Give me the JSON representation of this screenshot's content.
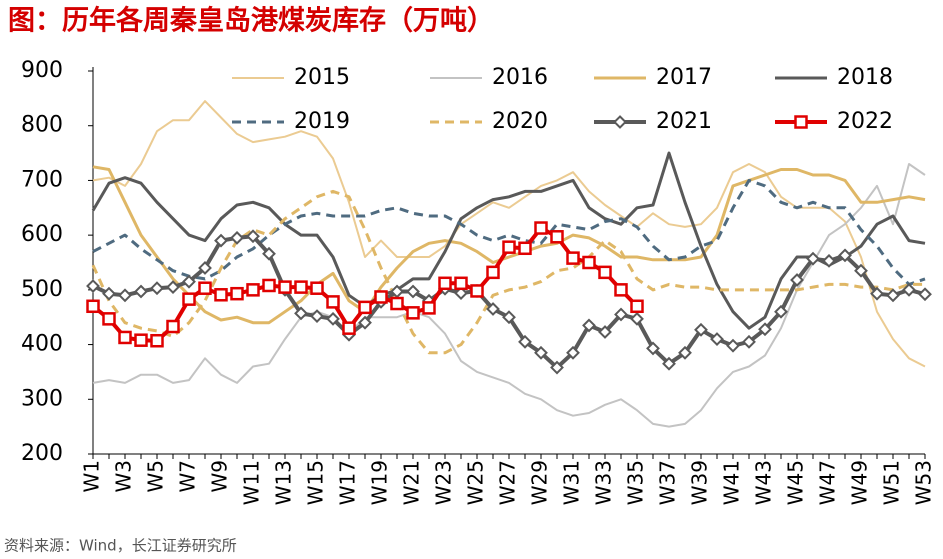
{
  "chart_data": {
    "type": "line",
    "title": "图：历年各周秦皇岛港煤炭库存（万吨）",
    "source": "资料来源：Wind，长江证券研究所",
    "categories": [
      "W1",
      null,
      "W3",
      null,
      "W5",
      null,
      "W7",
      null,
      "W9",
      null,
      "W11",
      null,
      "W13",
      null,
      "W15",
      null,
      "W17",
      null,
      "W19",
      null,
      "W21",
      null,
      "W23",
      null,
      "W25",
      null,
      "W27",
      null,
      "W29",
      null,
      "W31",
      null,
      "W33",
      null,
      "W35",
      null,
      "W37",
      null,
      "W39",
      null,
      "W41",
      null,
      "W43",
      null,
      "W45",
      null,
      "W47",
      null,
      "W49",
      null,
      "W51",
      null,
      "W53"
    ],
    "ylim": [
      200,
      900
    ],
    "yticks": [
      200,
      300,
      400,
      500,
      600,
      700,
      800,
      900
    ],
    "grid": false,
    "legend": "top",
    "series": [
      {
        "name": "2015",
        "color": "#ebcb92",
        "width": 2,
        "dash": false,
        "marker": null,
        "values": [
          700,
          705,
          690,
          730,
          790,
          810,
          810,
          845,
          815,
          785,
          770,
          775,
          780,
          790,
          780,
          740,
          660,
          560,
          590,
          560,
          560,
          560,
          580,
          620,
          640,
          660,
          650,
          670,
          690,
          700,
          715,
          680,
          655,
          635,
          615,
          640,
          620,
          615,
          620,
          650,
          715,
          730,
          715,
          670,
          650,
          650,
          650,
          625,
          560,
          460,
          410,
          375,
          360
        ]
      },
      {
        "name": "2016",
        "color": "#c3c3c3",
        "width": 2,
        "dash": false,
        "marker": null,
        "values": [
          330,
          335,
          330,
          345,
          345,
          330,
          335,
          375,
          345,
          330,
          360,
          365,
          410,
          450,
          460,
          450,
          420,
          450,
          450,
          450,
          460,
          450,
          420,
          370,
          350,
          340,
          330,
          310,
          300,
          280,
          270,
          275,
          290,
          300,
          280,
          255,
          250,
          255,
          280,
          320,
          350,
          360,
          380,
          430,
          500,
          550,
          600,
          620,
          650,
          690,
          620,
          730,
          710
        ]
      },
      {
        "name": "2017",
        "color": "#dfb766",
        "width": 3,
        "dash": false,
        "marker": null,
        "values": [
          725,
          720,
          660,
          600,
          560,
          520,
          490,
          460,
          445,
          450,
          440,
          440,
          460,
          480,
          510,
          530,
          480,
          460,
          505,
          540,
          570,
          585,
          590,
          585,
          570,
          550,
          560,
          570,
          580,
          585,
          600,
          595,
          580,
          560,
          560,
          555,
          555,
          555,
          560,
          600,
          690,
          700,
          710,
          720,
          720,
          710,
          710,
          700,
          660,
          660,
          665,
          670,
          665
        ]
      },
      {
        "name": "2018",
        "color": "#595959",
        "width": 3,
        "dash": false,
        "marker": null,
        "values": [
          645,
          695,
          705,
          695,
          660,
          630,
          600,
          590,
          630,
          655,
          660,
          650,
          620,
          600,
          600,
          560,
          490,
          470,
          490,
          500,
          520,
          520,
          570,
          630,
          650,
          665,
          670,
          680,
          680,
          690,
          700,
          650,
          630,
          620,
          650,
          655,
          750,
          660,
          580,
          510,
          460,
          430,
          450,
          520,
          560,
          560,
          545,
          560,
          580,
          620,
          635,
          590,
          585
        ]
      },
      {
        "name": "2019",
        "color": "#4f6b80",
        "width": 3,
        "dash": true,
        "marker": null,
        "values": [
          570,
          585,
          600,
          575,
          555,
          535,
          525,
          520,
          535,
          560,
          575,
          600,
          620,
          635,
          640,
          635,
          635,
          635,
          645,
          650,
          640,
          635,
          635,
          620,
          600,
          590,
          600,
          590,
          585,
          620,
          615,
          610,
          625,
          630,
          615,
          580,
          555,
          560,
          580,
          590,
          650,
          700,
          690,
          660,
          650,
          660,
          650,
          650,
          610,
          580,
          540,
          510,
          520
        ]
      },
      {
        "name": "2020",
        "color": "#dfb766",
        "width": 3,
        "dash": true,
        "marker": null,
        "values": [
          545,
          480,
          440,
          430,
          425,
          415,
          440,
          480,
          540,
          590,
          610,
          600,
          630,
          650,
          670,
          680,
          670,
          610,
          540,
          480,
          420,
          385,
          385,
          400,
          440,
          490,
          500,
          505,
          515,
          535,
          540,
          560,
          590,
          570,
          520,
          500,
          510,
          505,
          505,
          500,
          500,
          500,
          500,
          500,
          500,
          505,
          510,
          510,
          505,
          505,
          500,
          510,
          510
        ]
      },
      {
        "name": "2021",
        "color": "#595959",
        "width": 4,
        "dash": false,
        "marker": "diamond",
        "values": [
          507,
          493,
          490,
          497,
          503,
          505,
          515,
          540,
          590,
          595,
          598,
          566,
          500,
          457,
          452,
          447,
          418,
          440,
          478,
          497,
          497,
          480,
          502,
          494,
          498,
          465,
          450,
          405,
          385,
          358,
          385,
          435,
          423,
          455,
          447,
          393,
          365,
          385,
          427,
          410,
          398,
          405,
          428,
          460,
          518,
          557,
          553,
          563,
          535,
          493,
          490,
          500,
          492
        ]
      },
      {
        "name": "2022",
        "color": "#e00000",
        "width": 4,
        "dash": false,
        "marker": "square",
        "values": [
          470,
          447,
          413,
          408,
          407,
          433,
          483,
          503,
          491,
          493,
          500,
          508,
          505,
          505,
          503,
          478,
          430,
          468,
          487,
          475,
          458,
          467,
          512,
          512,
          498,
          532,
          578,
          576,
          613,
          597,
          558,
          550,
          532,
          500,
          470,
          null,
          null,
          null,
          null,
          null,
          null,
          null,
          null,
          null,
          null,
          null,
          null,
          null,
          null,
          null,
          null,
          null,
          null
        ]
      }
    ]
  }
}
